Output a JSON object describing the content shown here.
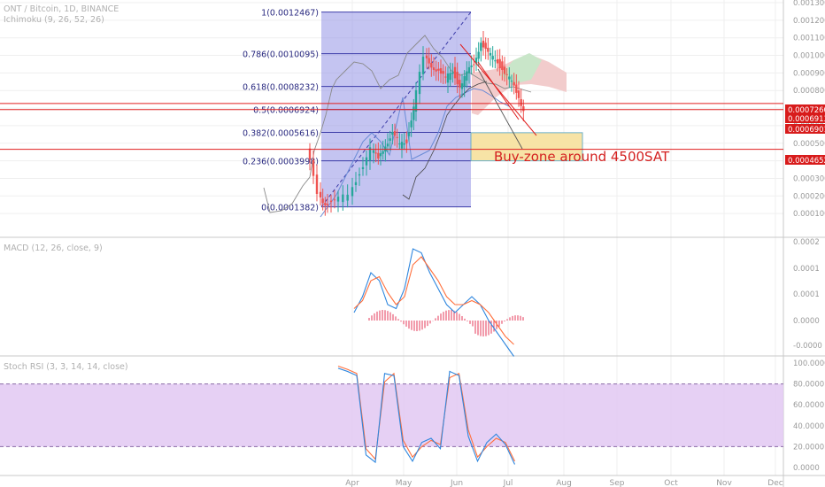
{
  "header": {
    "symbol_line": "ONT / Bitcoin, 1D, BINANCE",
    "ichimoku_label": "Ichimoku (9, 26, 52, 26)"
  },
  "macd_label": "MACD (12, 26, close, 9)",
  "stoch_label": "Stoch RSI (3, 3, 14, 14, close)",
  "annotation_text": "Buy-zone around 4500SAT",
  "colors": {
    "fib_fill": "#9494e6",
    "fib_line": "#3c3ca8",
    "horizontal_line": "#e01e1e",
    "buy_zone_fill": "#f7e3a6",
    "buy_zone_border": "#6cb0c8",
    "cloud_fill": "#f2cccc",
    "cloud_green": "#c9e6c9",
    "candle_up": "#26a69a",
    "candle_down": "#ef5350",
    "macd_line": "#2e86de",
    "signal_line": "#ff6f3c",
    "histogram": "#e53a5a",
    "stoch_k": "#2e86de",
    "stoch_d": "#ff6f3c",
    "stoch_band": "#e2c8f2",
    "price_tag_bg": "#d81b1b",
    "axis_text": "#9a9a9a",
    "grid_line": "#efefef"
  },
  "chart_data": [
    {
      "type": "candlestick",
      "title": "ONT / Bitcoin, 1D, BINANCE",
      "x_ticks": [
        "Apr",
        "May",
        "Jun",
        "Jul",
        "Aug",
        "Sep",
        "Oct",
        "Nov",
        "Dec"
      ],
      "y_ticks": [
        "0.0013000",
        "0.0012000",
        "0.0011000",
        "0.0010000",
        "0.0009000",
        "0.0008000",
        "0.0007000",
        "0.0006000",
        "0.0005000",
        "0.0004000",
        "0.0003000",
        "0.0002000",
        "0.0001000"
      ],
      "ylim": [
        0.0,
        0.0013
      ],
      "price_tags": [
        {
          "label": "0.0007260",
          "value": 0.000726
        },
        {
          "label": "0.0006913",
          "value": 0.0006913
        },
        {
          "label": "0.0006901",
          "value": 0.0006901
        },
        {
          "label": "0.0004652",
          "value": 0.0004652
        }
      ],
      "horizontal_lines": [
        0.000726,
        0.0006913,
        0.0004652
      ],
      "fib_levels": [
        {
          "label": "1(0.0012467)",
          "value": 0.0012467
        },
        {
          "label": "0.786(0.0010095)",
          "value": 0.0010095
        },
        {
          "label": "0.618(0.0008232)",
          "value": 0.0008232
        },
        {
          "label": "0.5(0.0006924)",
          "value": 0.0006924
        },
        {
          "label": "0.382(0.0005616)",
          "value": 0.0005616
        },
        {
          "label": "0.236(0.0003998)",
          "value": 0.0003998
        },
        {
          "label": "0(0.0001382)",
          "value": 0.0001382
        }
      ],
      "buy_zone": {
        "low": 0.0004,
        "high": 0.00056
      },
      "price_path": [
        [
          0.0,
          0.00047
        ],
        [
          1.5,
          0.00022
        ],
        [
          2.5,
          0.00016
        ],
        [
          4,
          0.00016
        ],
        [
          6,
          0.00021
        ],
        [
          7.5,
          0.00034
        ],
        [
          9,
          0.00046
        ],
        [
          10,
          0.00041
        ],
        [
          11,
          0.0005
        ],
        [
          12,
          0.00055
        ],
        [
          13,
          0.00049
        ],
        [
          14,
          0.00052
        ],
        [
          15,
          0.0007
        ],
        [
          16.5,
          0.00098
        ],
        [
          17.5,
          0.00095
        ],
        [
          18.5,
          0.00091
        ],
        [
          19.5,
          0.00086
        ],
        [
          20.5,
          0.00092
        ],
        [
          21.5,
          0.00082
        ],
        [
          22.5,
          0.00089
        ],
        [
          23.5,
          0.00096
        ],
        [
          24.5,
          0.00108
        ],
        [
          25.5,
          0.001
        ],
        [
          26.5,
          0.00098
        ],
        [
          27.5,
          0.00093
        ],
        [
          28.5,
          0.00086
        ],
        [
          29.5,
          0.00079
        ],
        [
          30.5,
          0.0007
        ]
      ]
    },
    {
      "type": "line",
      "title": "MACD (12, 26, close, 9)",
      "y_ticks": [
        "0.0002",
        "0.0001",
        "0.0001",
        "0.0000",
        "-0.0000"
      ],
      "series": [
        {
          "name": "MACD",
          "values": [
            2e-05,
            6e-05,
            0.00012,
            0.0001,
            4e-05,
            3e-05,
            8e-05,
            0.00018,
            0.00017,
            0.00012,
            8e-05,
            4e-05,
            2e-05,
            4e-05,
            6e-05,
            4e-05,
            0.0,
            -3e-05,
            -6e-05,
            -9e-05
          ]
        },
        {
          "name": "Signal",
          "values": [
            3e-05,
            5e-05,
            0.0001,
            0.00011,
            7e-05,
            4e-05,
            6e-05,
            0.00014,
            0.00016,
            0.00013,
            0.0001,
            6e-05,
            4e-05,
            4e-05,
            5e-05,
            4e-05,
            2e-05,
            -1e-05,
            -4e-05,
            -6e-05
          ]
        }
      ]
    },
    {
      "type": "line",
      "title": "Stoch RSI (3, 3, 14, 14, close)",
      "y_ticks": [
        "100.0000",
        "80.0000",
        "60.0000",
        "40.0000",
        "20.0000",
        "0.0000"
      ],
      "ylim": [
        0,
        100
      ],
      "bands": [
        20,
        80
      ],
      "series": [
        {
          "name": "K",
          "values": [
            95,
            92,
            88,
            12,
            5,
            90,
            88,
            20,
            6,
            24,
            28,
            18,
            92,
            88,
            30,
            6,
            24,
            32,
            22,
            3
          ]
        },
        {
          "name": "D",
          "values": [
            97,
            94,
            90,
            18,
            8,
            82,
            90,
            26,
            10,
            20,
            26,
            22,
            86,
            90,
            36,
            10,
            20,
            28,
            24,
            6
          ]
        }
      ]
    }
  ]
}
